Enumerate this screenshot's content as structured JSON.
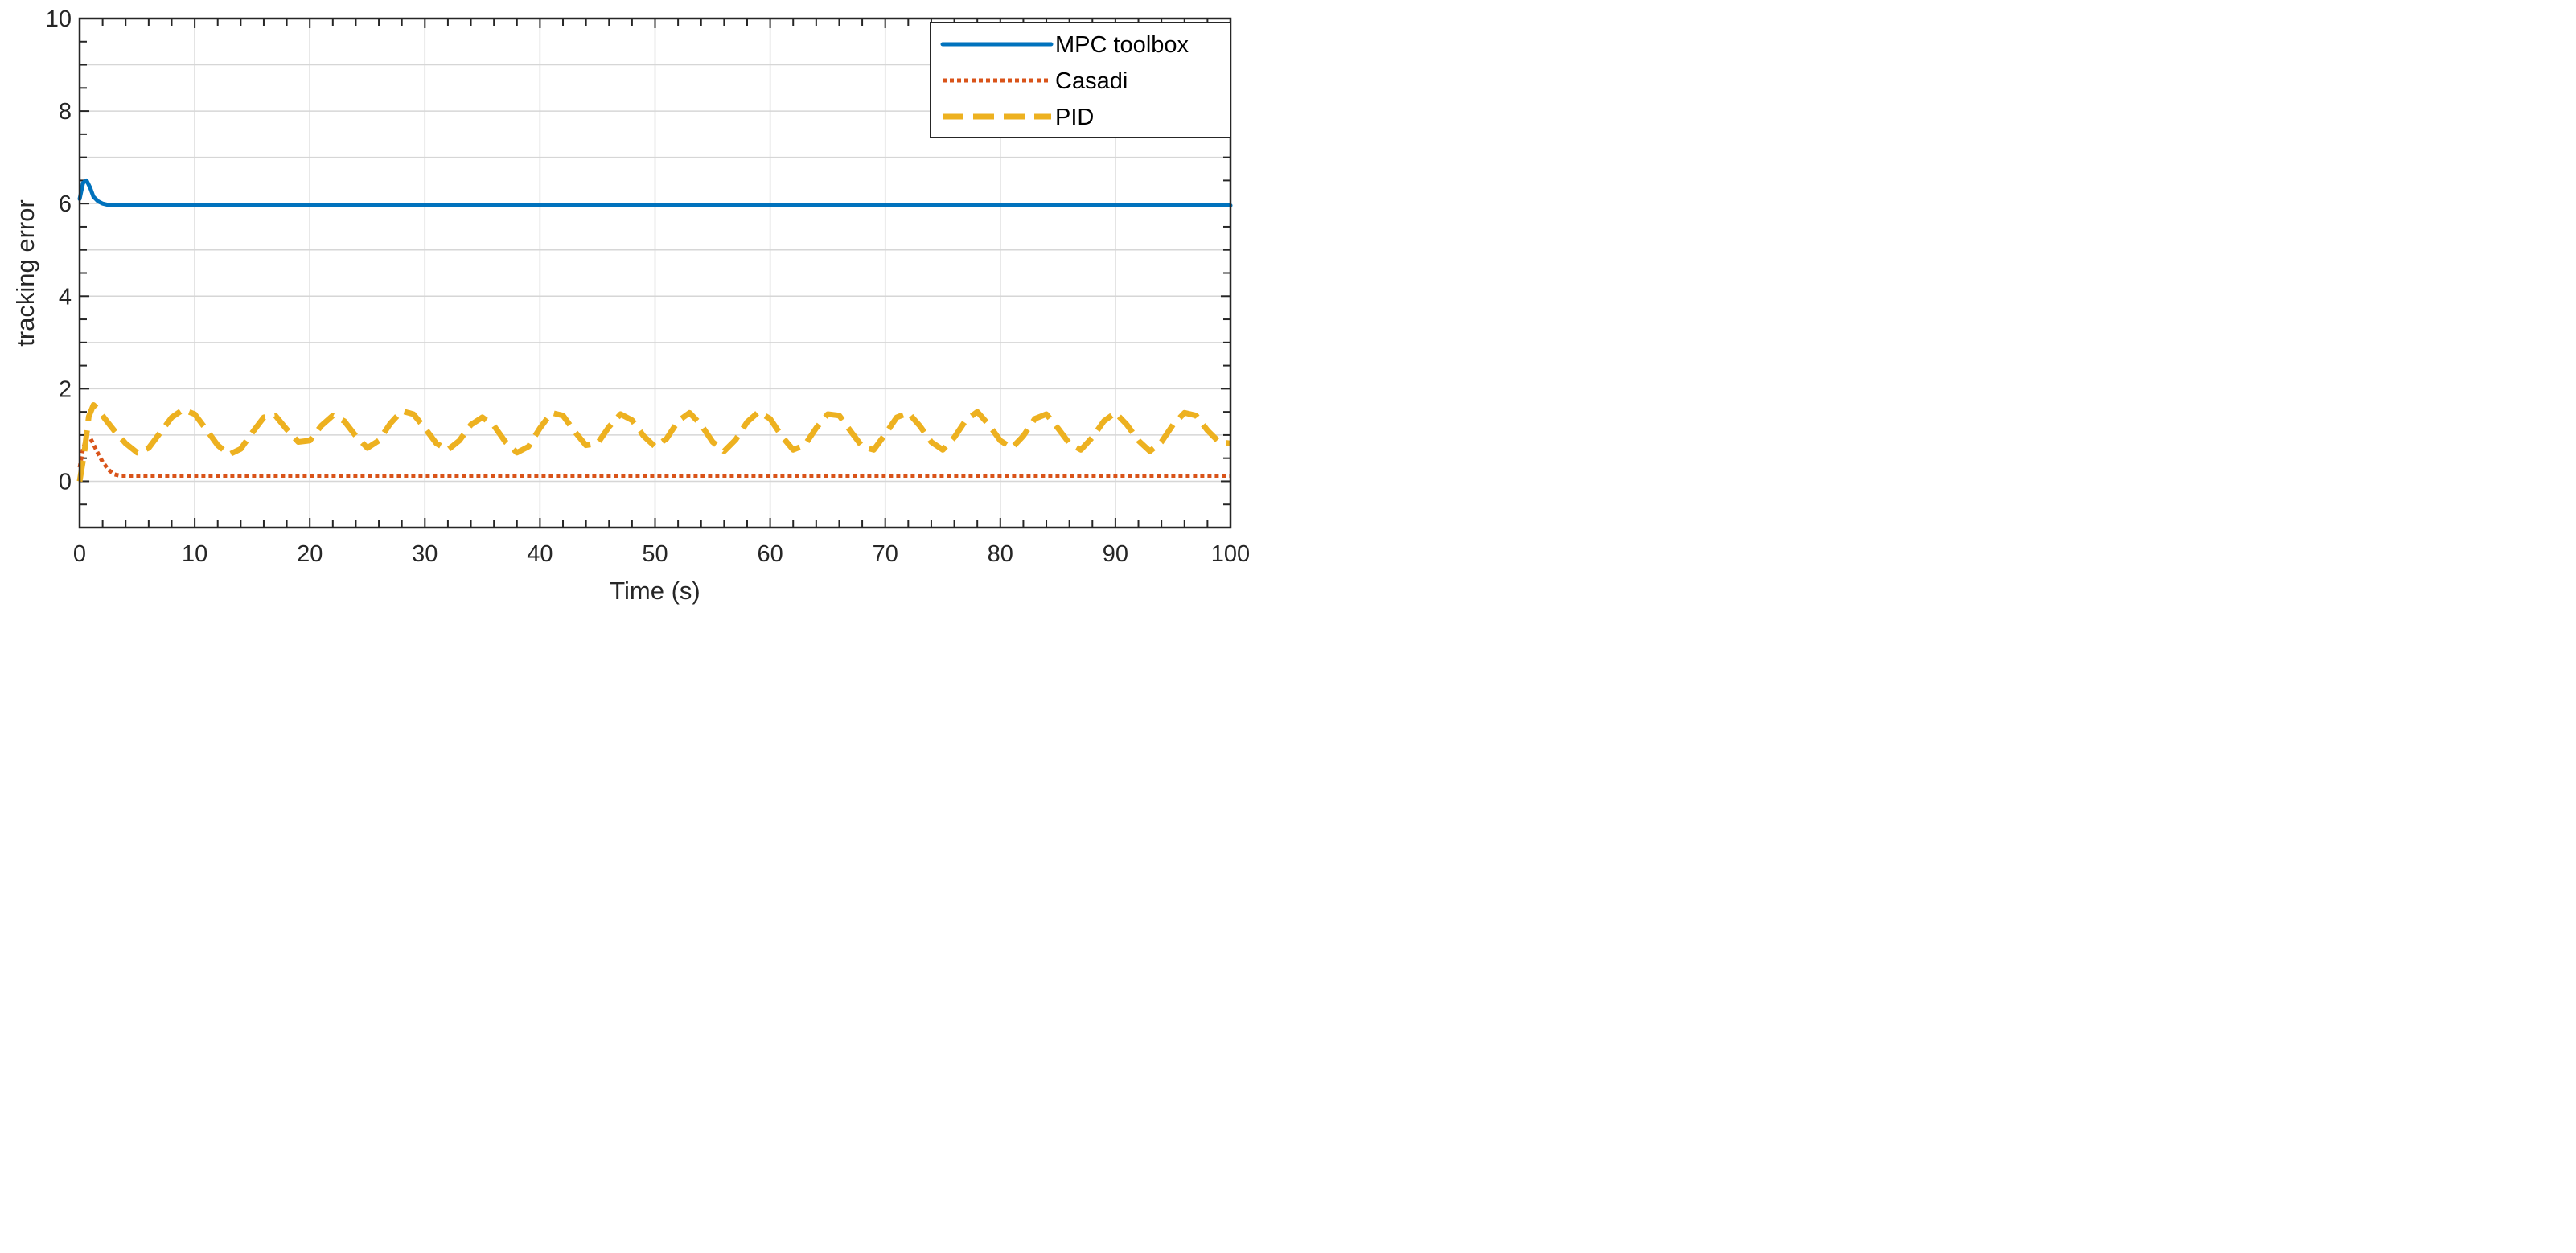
{
  "chart_data": {
    "type": "line",
    "title": "",
    "xlabel": "Time (s)",
    "ylabel": "tracking error",
    "xlim": [
      0,
      100
    ],
    "ylim": [
      -1,
      10
    ],
    "xticks": [
      0,
      10,
      20,
      30,
      40,
      50,
      60,
      70,
      80,
      90,
      100
    ],
    "yticks": [
      0,
      2,
      4,
      6,
      8,
      10
    ],
    "grid": true,
    "legend_position": "top-right",
    "series": [
      {
        "name": "MPC toolbox",
        "color": "#0072BD",
        "style": "solid",
        "x": [
          0,
          0.3,
          0.6,
          0.9,
          1.2,
          1.6,
          2,
          2.5,
          3,
          4,
          10,
          20,
          30,
          40,
          50,
          60,
          70,
          80,
          90,
          100
        ],
        "y": [
          6.1,
          6.45,
          6.5,
          6.35,
          6.15,
          6.05,
          6.0,
          5.97,
          5.96,
          5.96,
          5.96,
          5.96,
          5.96,
          5.96,
          5.96,
          5.96,
          5.96,
          5.96,
          5.96,
          5.96
        ]
      },
      {
        "name": "Casadi",
        "color": "#D95319",
        "style": "dotted",
        "x": [
          0,
          0.3,
          0.6,
          0.9,
          1.2,
          1.6,
          2,
          2.5,
          3,
          3.5,
          4,
          10,
          20,
          30,
          40,
          50,
          60,
          70,
          80,
          90,
          100
        ],
        "y": [
          0.3,
          0.7,
          0.95,
          0.95,
          0.8,
          0.6,
          0.42,
          0.25,
          0.15,
          0.12,
          0.12,
          0.12,
          0.12,
          0.12,
          0.12,
          0.12,
          0.12,
          0.12,
          0.12,
          0.12,
          0.12
        ]
      },
      {
        "name": "PID",
        "color": "#EDB120",
        "style": "dashed",
        "x": [
          0,
          0.4,
          0.8,
          1.2,
          1.6,
          2.2,
          3,
          4,
          5,
          6,
          7,
          8,
          9,
          10,
          11,
          12,
          13,
          14,
          15,
          16,
          17,
          18,
          19,
          20,
          21,
          22,
          23,
          24,
          25,
          26,
          27,
          28,
          29,
          30,
          31,
          32,
          33,
          34,
          35,
          36,
          37,
          38,
          39,
          40,
          41,
          42,
          43,
          44,
          45,
          46,
          47,
          48,
          49,
          50,
          51,
          52,
          53,
          54,
          55,
          56,
          57,
          58,
          59,
          60,
          61,
          62,
          63,
          64,
          65,
          66,
          67,
          68,
          69,
          70,
          71,
          72,
          73,
          74,
          75,
          76,
          77,
          78,
          79,
          80,
          81,
          82,
          83,
          84,
          85,
          86,
          87,
          88,
          89,
          90,
          91,
          92,
          93,
          94,
          95,
          96,
          97,
          98,
          99,
          100
        ],
        "y": [
          0.0,
          0.6,
          1.4,
          1.65,
          1.55,
          1.35,
          1.1,
          0.82,
          0.62,
          0.72,
          1.05,
          1.38,
          1.55,
          1.45,
          1.12,
          0.78,
          0.58,
          0.7,
          1.05,
          1.38,
          1.42,
          1.12,
          0.85,
          0.88,
          1.2,
          1.42,
          1.3,
          0.98,
          0.72,
          0.88,
          1.25,
          1.52,
          1.45,
          1.15,
          0.82,
          0.68,
          0.88,
          1.22,
          1.38,
          1.2,
          0.85,
          0.62,
          0.75,
          1.15,
          1.48,
          1.42,
          1.08,
          0.78,
          0.82,
          1.18,
          1.45,
          1.32,
          0.98,
          0.75,
          0.92,
          1.3,
          1.48,
          1.22,
          0.85,
          0.65,
          0.9,
          1.28,
          1.5,
          1.35,
          0.98,
          0.68,
          0.78,
          1.15,
          1.45,
          1.42,
          1.08,
          0.75,
          0.68,
          1.02,
          1.38,
          1.48,
          1.2,
          0.85,
          0.68,
          0.95,
          1.32,
          1.5,
          1.22,
          0.88,
          0.72,
          0.98,
          1.35,
          1.45,
          1.15,
          0.82,
          0.68,
          0.95,
          1.3,
          1.48,
          1.22,
          0.88,
          0.65,
          0.85,
          1.22,
          1.48,
          1.42,
          1.1,
          0.85,
          0.82
        ]
      }
    ]
  }
}
